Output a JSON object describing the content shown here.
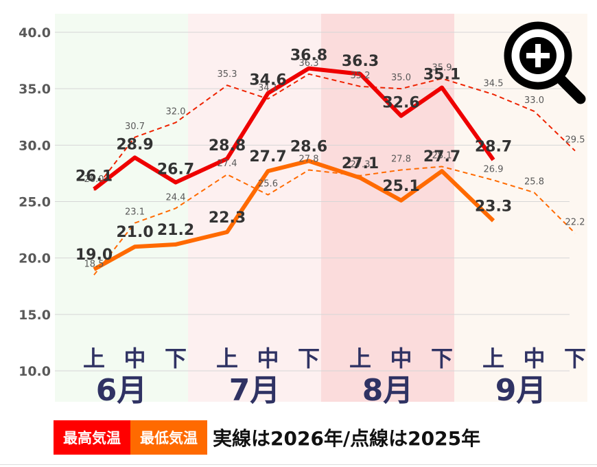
{
  "chart_data": {
    "type": "line",
    "months": [
      {
        "label": "6月",
        "bg": "#f3fbf2"
      },
      {
        "label": "7月",
        "bg": "#fdf0f0"
      },
      {
        "label": "8月",
        "bg": "#fbdcdc"
      },
      {
        "label": "9月",
        "bg": "#fdf7f1"
      }
    ],
    "decade_labels": [
      "上",
      "中",
      "下",
      "上",
      "中",
      "下",
      "上",
      "中",
      "下",
      "上",
      "中",
      "下"
    ],
    "ylim": [
      10.0,
      40.0
    ],
    "yticks": [
      "10.0",
      "15.0",
      "20.0",
      "25.0",
      "30.0",
      "35.0",
      "40.0"
    ],
    "series": [
      {
        "name": "最高気温",
        "year": "2026",
        "style": "solid",
        "color": "#ee0000",
        "values": [
          26.1,
          28.9,
          26.7,
          28.8,
          34.6,
          36.8,
          36.3,
          32.6,
          35.1,
          28.7
        ],
        "labels": [
          "26.1",
          "28.9",
          "26.7",
          "28.8",
          "34.6",
          "36.8",
          "36.3",
          "32.6",
          "35.1",
          "28.7"
        ]
      },
      {
        "name": "最低気温",
        "year": "2026",
        "style": "solid",
        "color": "#ff6a00",
        "values": [
          19.0,
          21.0,
          21.2,
          22.3,
          27.7,
          28.6,
          27.1,
          25.1,
          27.7,
          23.3
        ],
        "labels": [
          "19.0",
          "21.0",
          "21.2",
          "22.3",
          "27.7",
          "28.6",
          "27.1",
          "25.1",
          "27.7",
          "23.3"
        ]
      },
      {
        "name": "最高気温",
        "year": "2025",
        "style": "dashed",
        "color": "#ee2200",
        "values": [
          26.0,
          30.7,
          32.0,
          35.3,
          34.1,
          36.3,
          35.2,
          35.0,
          35.9,
          34.5,
          33.0,
          29.5
        ],
        "labels": [
          "26.0",
          "30.7",
          "32.0",
          "35.3",
          "34.1",
          "36.3",
          "35.2",
          "35.0",
          "35.9",
          "34.5",
          "33.0",
          "29.5"
        ]
      },
      {
        "name": "最低気温",
        "year": "2025",
        "style": "dashed",
        "color": "#ff6a00",
        "values": [
          18.5,
          23.1,
          24.4,
          27.4,
          25.6,
          27.8,
          27.3,
          27.8,
          28.1,
          26.9,
          25.8,
          22.2
        ],
        "labels": [
          "18.5",
          "23.1",
          "24.4",
          "27.4",
          "25.6",
          "27.8",
          "27.3",
          "27.8",
          "28.1",
          "26.9",
          "25.8",
          "22.2"
        ]
      }
    ]
  },
  "legend": {
    "max_label": "最高気温",
    "min_label": "最低気温",
    "note": "実線は2026年/点線は2025年"
  },
  "zoom_button": {
    "icon": "zoom-in-icon"
  }
}
